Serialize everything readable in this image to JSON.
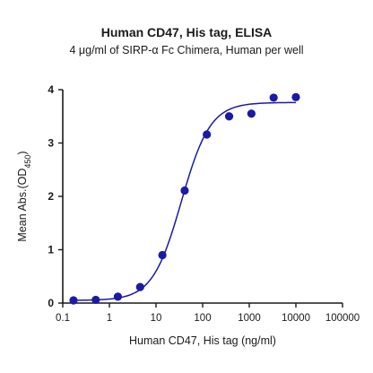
{
  "chart_data": {
    "type": "scatter",
    "title": "Human CD47, His tag, ELISA",
    "subtitle": "4 μg/ml of SIRP-α Fc Chimera, Human per well",
    "xlabel": "Human CD47, His tag (ng/ml)",
    "ylabel_main": "Mean Abs.(OD",
    "ylabel_sub": "450",
    "ylabel_close": ")",
    "xscale": "log",
    "xlim": [
      0.1,
      100000
    ],
    "ylim": [
      0,
      4
    ],
    "x_ticks": [
      0.1,
      1,
      10,
      100,
      1000,
      10000,
      100000
    ],
    "x_tick_labels": [
      "0.1",
      "1",
      "10",
      "100",
      "1000",
      "10000",
      "100000"
    ],
    "y_ticks": [
      0,
      1,
      2,
      3,
      4
    ],
    "y_tick_labels": [
      "0",
      "1",
      "2",
      "3",
      "4"
    ],
    "grid": false,
    "legend": "none",
    "color": "#1a1aa6",
    "points": [
      {
        "x": 0.17,
        "y": 0.05
      },
      {
        "x": 0.51,
        "y": 0.06
      },
      {
        "x": 1.52,
        "y": 0.12
      },
      {
        "x": 4.57,
        "y": 0.3
      },
      {
        "x": 13.7,
        "y": 0.9
      },
      {
        "x": 41.2,
        "y": 2.11
      },
      {
        "x": 123,
        "y": 3.16
      },
      {
        "x": 370,
        "y": 3.5
      },
      {
        "x": 1111,
        "y": 3.55
      },
      {
        "x": 3333,
        "y": 3.85
      },
      {
        "x": 10000,
        "y": 3.86
      }
    ],
    "fit": {
      "model": "4PL",
      "bottom": 0.05,
      "top": 3.76,
      "ec50": 35,
      "hill": 1.4
    }
  }
}
